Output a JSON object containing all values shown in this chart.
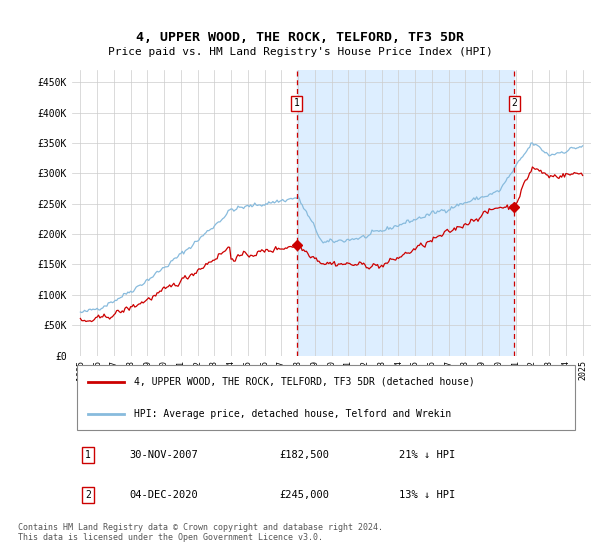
{
  "title": "4, UPPER WOOD, THE ROCK, TELFORD, TF3 5DR",
  "subtitle": "Price paid vs. HM Land Registry's House Price Index (HPI)",
  "ylabel_ticks": [
    "£0",
    "£50K",
    "£100K",
    "£150K",
    "£200K",
    "£250K",
    "£300K",
    "£350K",
    "£400K",
    "£450K"
  ],
  "ytick_values": [
    0,
    50000,
    100000,
    150000,
    200000,
    250000,
    300000,
    350000,
    400000,
    450000
  ],
  "ylim": [
    0,
    470000
  ],
  "xlim_start": 1994.5,
  "xlim_end": 2025.5,
  "xtick_years": [
    1995,
    1996,
    1997,
    1998,
    1999,
    2000,
    2001,
    2002,
    2003,
    2004,
    2005,
    2006,
    2007,
    2008,
    2009,
    2010,
    2011,
    2012,
    2013,
    2014,
    2015,
    2016,
    2017,
    2018,
    2019,
    2020,
    2021,
    2022,
    2023,
    2024,
    2025
  ],
  "plot_bg_color": "#ffffff",
  "shade_color": "#ddeeff",
  "grid_color": "#cccccc",
  "hpi_line_color": "#88bbdd",
  "price_line_color": "#cc0000",
  "vline_color": "#cc0000",
  "marker1_year": 2007.917,
  "marker1_price": 182500,
  "marker2_year": 2020.917,
  "marker2_price": 245000,
  "legend_line1": "4, UPPER WOOD, THE ROCK, TELFORD, TF3 5DR (detached house)",
  "legend_line2": "HPI: Average price, detached house, Telford and Wrekin",
  "table_row1_num": "1",
  "table_row1_date": "30-NOV-2007",
  "table_row1_price": "£182,500",
  "table_row1_hpi": "21% ↓ HPI",
  "table_row2_num": "2",
  "table_row2_date": "04-DEC-2020",
  "table_row2_price": "£245,000",
  "table_row2_hpi": "13% ↓ HPI",
  "footer": "Contains HM Land Registry data © Crown copyright and database right 2024.\nThis data is licensed under the Open Government Licence v3.0."
}
